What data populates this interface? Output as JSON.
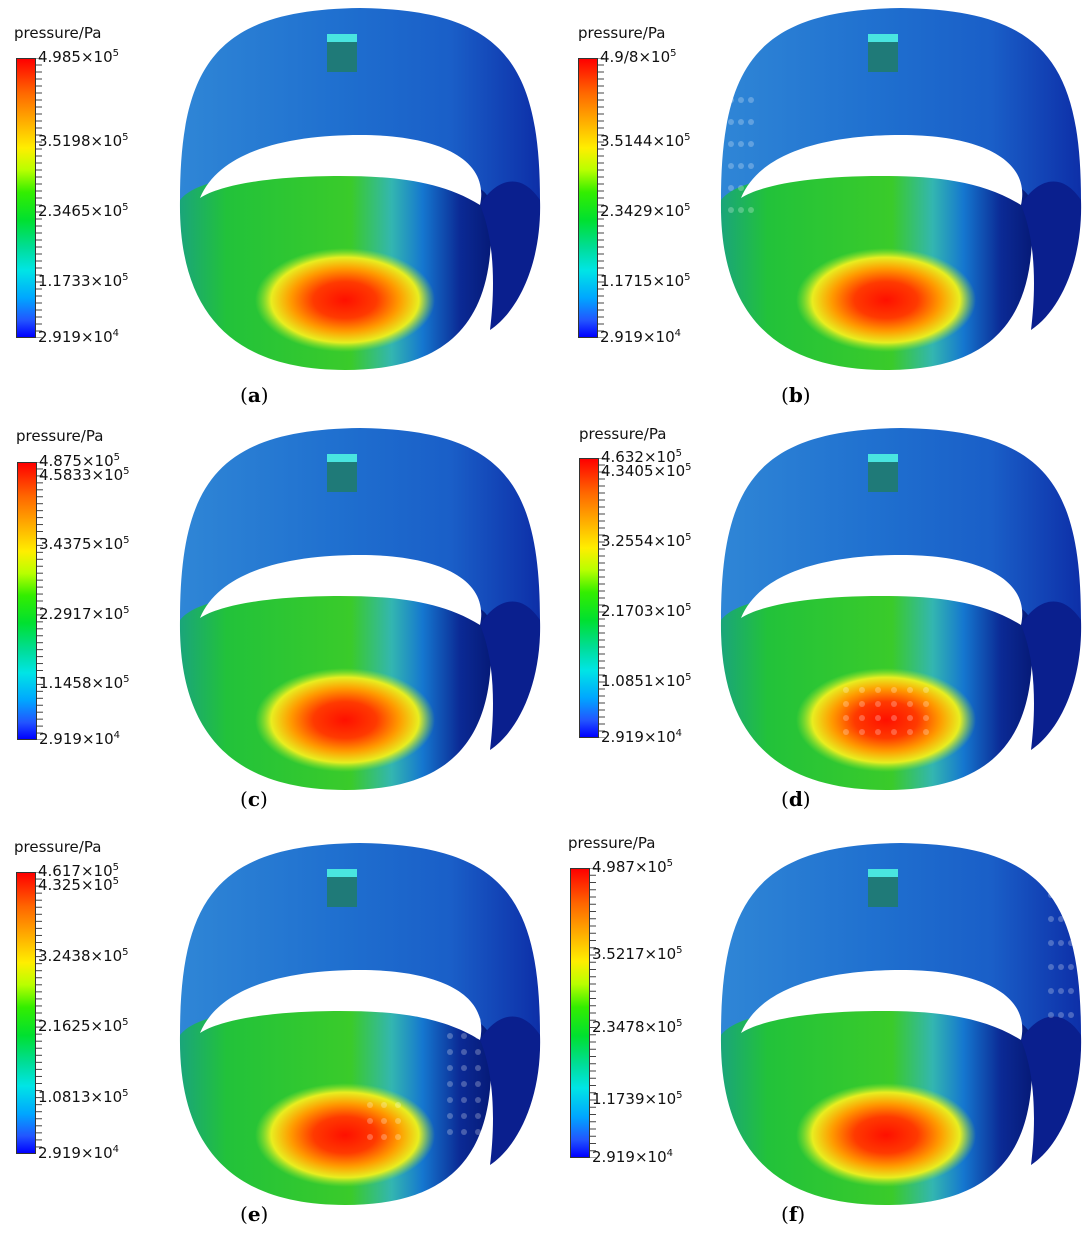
{
  "panels": [
    {
      "id": "a",
      "label": "a",
      "legend_title": "pressure/Pa",
      "ticks": [
        {
          "m": "4.985",
          "e": "5"
        },
        {
          "m": "3.5198",
          "e": "5"
        },
        {
          "m": "2.3465",
          "e": "5"
        },
        {
          "m": "1.1733",
          "e": "5"
        },
        {
          "m": "2.919",
          "e": "4"
        }
      ],
      "holes": "none"
    },
    {
      "id": "b",
      "label": "b",
      "legend_title": "pressure/Pa",
      "ticks": [
        {
          "m": "4.9/8",
          "e": "5"
        },
        {
          "m": "3.5144",
          "e": "5"
        },
        {
          "m": "2.3429",
          "e": "5"
        },
        {
          "m": "1.1715",
          "e": "5"
        },
        {
          "m": "2.919",
          "e": "4"
        }
      ],
      "holes": "left"
    },
    {
      "id": "c",
      "label": "c",
      "legend_title": "pressure/Pa",
      "ticks": [
        {
          "m": "4.875",
          "e": "5"
        },
        {
          "m": "4.5833",
          "e": "5"
        },
        {
          "m": "3.4375",
          "e": "5"
        },
        {
          "m": "2.2917",
          "e": "5"
        },
        {
          "m": "1.1458",
          "e": "5"
        },
        {
          "m": "2.919",
          "e": "4"
        }
      ],
      "holes": "none"
    },
    {
      "id": "d",
      "label": "d",
      "legend_title": "pressure/Pa",
      "ticks": [
        {
          "m": "4.632",
          "e": "5"
        },
        {
          "m": "4.3405",
          "e": "5"
        },
        {
          "m": "3.2554",
          "e": "5"
        },
        {
          "m": "2.1703",
          "e": "5"
        },
        {
          "m": "1.0851",
          "e": "5"
        },
        {
          "m": "2.919",
          "e": "4"
        }
      ],
      "holes": "center"
    },
    {
      "id": "e",
      "label": "e",
      "legend_title": "pressure/Pa",
      "ticks": [
        {
          "m": "4.617",
          "e": "5"
        },
        {
          "m": "4.325",
          "e": "5"
        },
        {
          "m": "3.2438",
          "e": "5"
        },
        {
          "m": "2.1625",
          "e": "5"
        },
        {
          "m": "1.0813",
          "e": "5"
        },
        {
          "m": "2.919",
          "e": "4"
        }
      ],
      "holes": "right-center"
    },
    {
      "id": "f",
      "label": "f",
      "legend_title": "pressure/Pa",
      "ticks": [
        {
          "m": "4.987",
          "e": "5"
        },
        {
          "m": "3.5217",
          "e": "5"
        },
        {
          "m": "2.3478",
          "e": "5"
        },
        {
          "m": "1.1739",
          "e": "5"
        },
        {
          "m": "2.919",
          "e": "4"
        }
      ],
      "holes": "right"
    }
  ],
  "colors": {
    "max": "#ff0000",
    "min": "#0000ff",
    "ring_outer": "#2a7fd4",
    "ring_dark": "#0a1a8a"
  }
}
